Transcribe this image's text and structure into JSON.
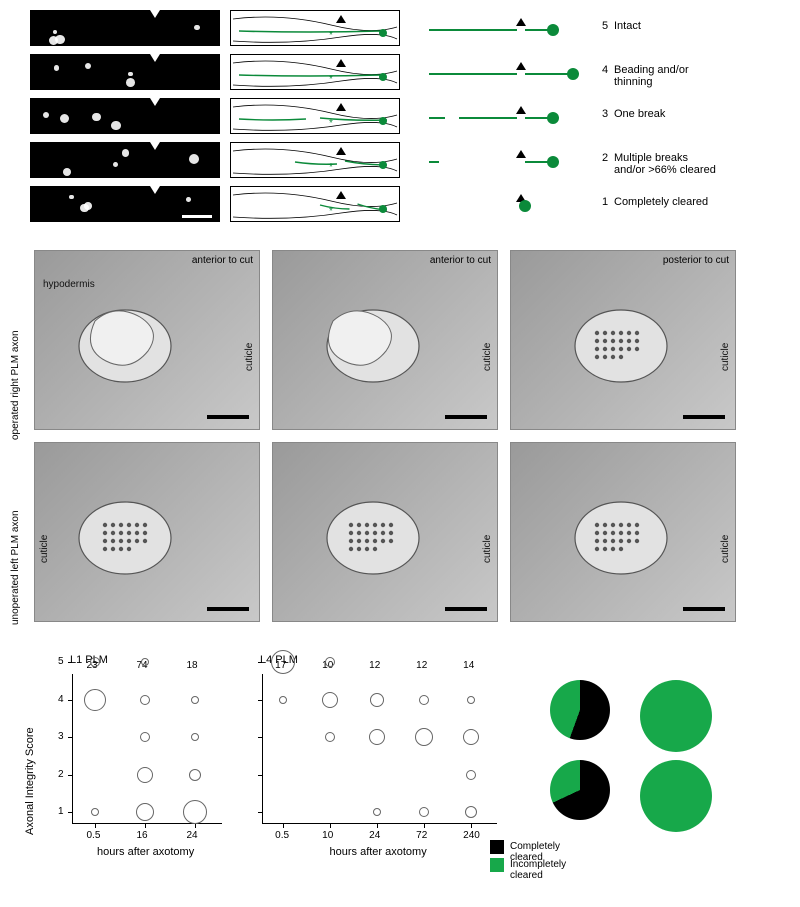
{
  "colors": {
    "green": "#0b8a3a",
    "green_incomplete": "#17a84a",
    "black": "#000000",
    "bubble_stroke": "#666666",
    "em_bg_light": "#c8c8c8",
    "em_bg_dark": "#8a8a8a"
  },
  "panel_a": {
    "rows": [
      {
        "score": "5",
        "label": "Intact",
        "line_breaks": 0,
        "dot_x": 128
      },
      {
        "score": "4",
        "label": "Beading and/or\nthinning",
        "line_breaks": 0,
        "dot_x": 148
      },
      {
        "score": "3",
        "label": "One break",
        "line_breaks": 1,
        "dot_x": 128
      },
      {
        "score": "2",
        "label": "Multiple breaks\nand/or >66% cleared",
        "line_breaks": 2,
        "dot_x": 128
      },
      {
        "score": "1",
        "label": "Completely cleared",
        "line_breaks": 3,
        "dot_x": 100
      }
    ],
    "arrow_x_ratio": 0.58
  },
  "panel_b": {
    "row_labels": [
      "operated right PLM axon",
      "unoperated left PLM axon"
    ],
    "col_labels": [
      "anterior to cut",
      "anterior to cut",
      "posterior to cut"
    ],
    "inset_labels": {
      "hypodermis": "hypodermis",
      "cuticle": "cuticle"
    },
    "scalebar_nm": 200
  },
  "panel_c": {
    "y_axis_title": "Axonal Integrity Score",
    "x_axis_title": "hours after axotomy",
    "charts": [
      {
        "title": "L1 PLM",
        "x_ticks": [
          "0.5",
          "16",
          "24"
        ],
        "n_counts": [
          "23",
          "74",
          "18"
        ],
        "bubbles": [
          {
            "x": 0,
            "y": 5,
            "r": 5
          },
          {
            "x": 0,
            "y": 4,
            "r": 11
          },
          {
            "x": 0,
            "y": 1,
            "r": 4
          },
          {
            "x": 1,
            "y": 5,
            "r": 4
          },
          {
            "x": 1,
            "y": 4,
            "r": 5
          },
          {
            "x": 1,
            "y": 3,
            "r": 5
          },
          {
            "x": 1,
            "y": 2,
            "r": 8
          },
          {
            "x": 1,
            "y": 1,
            "r": 9
          },
          {
            "x": 2,
            "y": 4,
            "r": 4
          },
          {
            "x": 2,
            "y": 3,
            "r": 4
          },
          {
            "x": 2,
            "y": 2,
            "r": 6
          },
          {
            "x": 2,
            "y": 1,
            "r": 12
          }
        ]
      },
      {
        "title": "L4 PLM",
        "x_ticks": [
          "0.5",
          "10",
          "24",
          "72",
          "240"
        ],
        "n_counts": [
          "17",
          "10",
          "12",
          "12",
          "14"
        ],
        "bubbles": [
          {
            "x": 0,
            "y": 5,
            "r": 12
          },
          {
            "x": 0,
            "y": 4,
            "r": 4
          },
          {
            "x": 1,
            "y": 5,
            "r": 5
          },
          {
            "x": 1,
            "y": 4,
            "r": 8
          },
          {
            "x": 1,
            "y": 3,
            "r": 5
          },
          {
            "x": 2,
            "y": 4,
            "r": 7
          },
          {
            "x": 2,
            "y": 3,
            "r": 8
          },
          {
            "x": 2,
            "y": 1,
            "r": 4
          },
          {
            "x": 3,
            "y": 4,
            "r": 5
          },
          {
            "x": 3,
            "y": 3,
            "r": 9
          },
          {
            "x": 3,
            "y": 1,
            "r": 5
          },
          {
            "x": 4,
            "y": 4,
            "r": 4
          },
          {
            "x": 4,
            "y": 3,
            "r": 8
          },
          {
            "x": 4,
            "y": 2,
            "r": 5
          },
          {
            "x": 4,
            "y": 1,
            "r": 6
          }
        ]
      }
    ],
    "y_ticks": [
      "1",
      "2",
      "3",
      "4",
      "5"
    ],
    "pies": [
      {
        "black_deg": 200
      },
      {
        "black_deg": 0
      },
      {
        "black_deg": 245
      },
      {
        "black_deg": 0
      }
    ],
    "pie_legend": [
      {
        "color": "#000000",
        "label": "Completely cleared"
      },
      {
        "color": "#17a84a",
        "label": "Incompletely cleared"
      }
    ]
  }
}
